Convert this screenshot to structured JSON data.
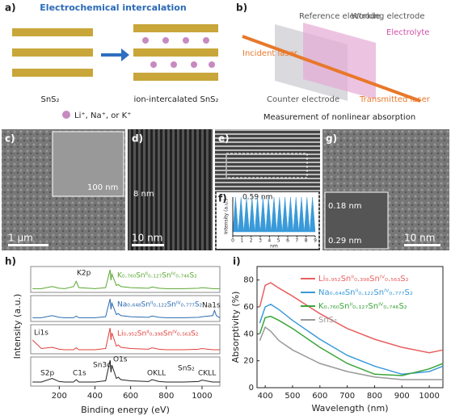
{
  "panels": {
    "a": {
      "label": "a)",
      "title": "Electrochemical intercalation",
      "left": "SnS₂",
      "right": "ion-intercalated SnS₂",
      "ions": "Li⁺, Na⁺, or K⁺"
    },
    "b": {
      "label": "b)",
      "reference": "Reference electrode",
      "working": "Working electrode",
      "electrolyte": "Electrolyte",
      "incident": "Incident laser",
      "counter": "Counter electrode",
      "transmitted": "Transmitted laser",
      "caption": "Measurement of nonlinear absorption"
    },
    "c": {
      "label": "c)",
      "inset_scale": "100 nm",
      "scale": "1 μm"
    },
    "d": {
      "label": "d)",
      "spacing": "8 nm",
      "scale": "10 nm"
    },
    "e": {
      "label": "e)"
    },
    "g": {
      "label": "g)",
      "spacing1": "0.18 nm",
      "spacing2": "0.29 nm",
      "scale": "10 nm"
    }
  },
  "chart_data": [
    {
      "panel_label": "f)",
      "type": "area",
      "y_label": "Intensity (a.u.)",
      "x_label": "nm",
      "annotation": "0.59 nm",
      "x": [
        0,
        0.3,
        0.6,
        0.9,
        1.2,
        1.5,
        1.8,
        2.1,
        2.4,
        2.7,
        3,
        3.3,
        3.6,
        3.9,
        4.2,
        4.5,
        4.8,
        5.1,
        5.4,
        5.7,
        6,
        6.3,
        6.6,
        6.9,
        7.2,
        7.5,
        7.8,
        8.1,
        8.4,
        8.7,
        9
      ],
      "series": [
        {
          "color": "#3a9ad9",
          "values": [
            0.1,
            1,
            0.1,
            1,
            0.1,
            1,
            0.1,
            1,
            0.1,
            1,
            0.1,
            1,
            0.1,
            1,
            0.1,
            1,
            0.1,
            1,
            0.1,
            1,
            0.1,
            1,
            0.1,
            1,
            0.1,
            1,
            0.1,
            1,
            0.1,
            1,
            0.1
          ]
        }
      ],
      "xlim": [
        0,
        9
      ],
      "xticks": [
        0,
        1,
        2,
        3,
        4,
        5,
        6,
        7,
        8,
        9
      ]
    },
    {
      "panel_label": "h)",
      "type": "line",
      "x_label": "Binding energy (eV)",
      "y_label": "Intensity (a.u.)",
      "x": [
        50,
        100,
        160,
        200,
        230,
        280,
        295,
        310,
        400,
        460,
        485,
        490,
        495,
        520,
        531,
        545,
        600,
        700,
        720,
        760,
        800,
        900,
        980,
        1000,
        1060,
        1070,
        1080,
        1100
      ],
      "series": [
        {
          "name": "SnS₂",
          "color": "#222222",
          "values": [
            0.1,
            0.1,
            0.25,
            0.12,
            0.1,
            0.1,
            0.2,
            0.1,
            0.1,
            0.15,
            1,
            0.5,
            0.8,
            0.25,
            0.3,
            0.2,
            0.15,
            0.12,
            0.2,
            0.12,
            0.1,
            0.1,
            0.12,
            0.18,
            0.1,
            0.1,
            0.1,
            0.1
          ]
        },
        {
          "name": "Li₀.₉₅₂Snᴵᴵ₀.₃₉₈Snᴵⱽ₀.₅₆₃S₂",
          "color": "#e0403a",
          "values": [
            0.5,
            0.15,
            0.2,
            0.12,
            0.1,
            0.1,
            0.18,
            0.1,
            0.1,
            0.15,
            1,
            0.5,
            0.8,
            0.25,
            0.3,
            0.2,
            0.15,
            0.12,
            0.18,
            0.12,
            0.1,
            0.1,
            0.12,
            0.15,
            0.1,
            0.1,
            0.1,
            0.1
          ]
        },
        {
          "name": "Na₀.₆₄₈Snᴵᴵ₀.₁₂₂Snᴵⱽ₀.₇₇₇S₂",
          "color": "#2b6cb0",
          "values": [
            0.1,
            0.1,
            0.2,
            0.12,
            0.1,
            0.1,
            0.18,
            0.1,
            0.1,
            0.15,
            1,
            0.5,
            0.8,
            0.25,
            0.3,
            0.2,
            0.15,
            0.12,
            0.18,
            0.12,
            0.1,
            0.1,
            0.12,
            0.15,
            0.2,
            0.45,
            0.2,
            0.1
          ]
        },
        {
          "name": "K₀.₇₆₀Snᴵᴵ₀.₁₂₇Snᴵⱽ₀.₇₄₆S₂",
          "color": "#5aa832",
          "values": [
            0.1,
            0.1,
            0.2,
            0.12,
            0.1,
            0.2,
            0.45,
            0.15,
            0.1,
            0.15,
            1,
            0.5,
            0.8,
            0.25,
            0.3,
            0.2,
            0.15,
            0.12,
            0.18,
            0.12,
            0.1,
            0.1,
            0.12,
            0.15,
            0.1,
            0.1,
            0.1,
            0.1
          ]
        }
      ],
      "xlim": [
        40,
        1100
      ],
      "xticks": [
        200,
        400,
        600,
        800,
        1000
      ],
      "annotations": [
        "K2p",
        "Na1s",
        "Li1s",
        "S2p",
        "C1s",
        "Sn3d",
        "O1s",
        "OKLL",
        "CKLL"
      ]
    },
    {
      "panel_label": "i)",
      "type": "line",
      "x_label": "Wavelength (nm)",
      "y_label": "Absorptivity (%)",
      "x": [
        380,
        400,
        420,
        450,
        500,
        600,
        700,
        800,
        900,
        1000,
        1050
      ],
      "series": [
        {
          "name": "Li₀.₉₅₂Snᴵᴵ₀.₃₉₈Snᴵⱽ₀.₅₆₃S₂",
          "color": "#e86060",
          "values": [
            60,
            76,
            78,
            74,
            68,
            55,
            44,
            36,
            30,
            26,
            28
          ]
        },
        {
          "name": "Na₀.₆₄₈Snᴵᴵ₀.₁₂₂Snᴵⱽ₀.₇₇₇S₂",
          "color": "#3a9ad9",
          "values": [
            48,
            60,
            62,
            58,
            50,
            36,
            24,
            16,
            10,
            12,
            16
          ]
        },
        {
          "name": "K₀.₇₆₀Snᴵᴵ₀.₁₂₇Snᴵⱽ₀.₇₄₆S₂",
          "color": "#3aa53a",
          "values": [
            40,
            52,
            53,
            50,
            44,
            30,
            18,
            10,
            9,
            14,
            18
          ]
        },
        {
          "name": "SnS₂",
          "color": "#999999",
          "values": [
            35,
            45,
            42,
            35,
            28,
            18,
            12,
            8,
            6,
            6,
            6
          ]
        }
      ],
      "xlim": [
        370,
        1050
      ],
      "xticks": [
        400,
        500,
        600,
        700,
        800,
        900,
        1000
      ],
      "ylim": [
        0,
        90
      ],
      "yticks": [
        0,
        20,
        40,
        60,
        80
      ]
    }
  ]
}
